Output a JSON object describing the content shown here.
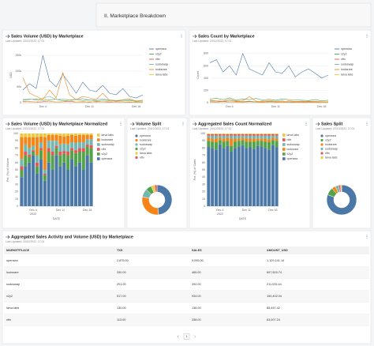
{
  "header": {
    "title": "II. Marketplace Breakdown"
  },
  "chart_data": [
    {
      "type": "line",
      "title": "Sales Volume (USD) by Marketplace",
      "subtitle": "Last Updated: 20/12/2022, 17:01",
      "ylabel": "USD",
      "categories": [
        null,
        null,
        null,
        "Dec 4",
        null,
        null,
        null,
        null,
        null,
        null,
        "Dec 11",
        null,
        null,
        null,
        null,
        null,
        null,
        "Dec 18",
        null
      ],
      "ylim": [
        0,
        175000
      ],
      "yticks": [
        0,
        {
          "value": 50000,
          "label": "50k"
        },
        {
          "value": 100000,
          "label": "100k"
        },
        {
          "value": 150000,
          "label": "150k"
        }
      ],
      "grid": true,
      "series": [
        {
          "name": "opensea",
          "color": "#4c78a8",
          "values": [
            40000,
            60000,
            45000,
            150000,
            70000,
            50000,
            90000,
            60000,
            30000,
            65000,
            40000,
            35000,
            55000,
            30000,
            25000,
            45000,
            20000,
            15000,
            25000
          ]
        },
        {
          "name": "x2y2",
          "color": "#54a24b",
          "values": [
            8000,
            10000,
            12000,
            7000,
            9000,
            11000,
            6000,
            8000,
            10000,
            7000,
            9000,
            6000,
            8000,
            7000,
            6000,
            5000,
            7000,
            4000,
            5000
          ]
        },
        {
          "name": "nftx",
          "color": "#e45756",
          "values": [
            3000,
            4000,
            2000,
            3000,
            5000,
            2000,
            3000,
            4000,
            2000,
            3000,
            2000,
            4000,
            3000,
            2000,
            3000,
            2000,
            1000,
            2000,
            1000
          ]
        },
        {
          "name": "sudoswap",
          "color": "#72b7b2",
          "values": [
            10000,
            12000,
            8000,
            15000,
            20000,
            10000,
            12000,
            9000,
            11000,
            13000,
            8000,
            10000,
            12000,
            9000,
            7000,
            8000,
            10000,
            6000,
            5000
          ]
        },
        {
          "name": "looksrare",
          "color": "#f58518",
          "values": [
            80000,
            30000,
            20000,
            10000,
            40000,
            15000,
            95000,
            25000,
            10000,
            20000,
            15000,
            10000,
            30000,
            8000,
            5000,
            10000,
            12000,
            5000,
            8000
          ]
        },
        {
          "name": "larva labs",
          "color": "#eeca3b",
          "values": [
            5000,
            3000,
            2000,
            15000,
            4000,
            2000,
            3000,
            8000,
            2000,
            1000,
            4000,
            2000,
            3000,
            5000,
            1000,
            2000,
            3000,
            1000,
            2000
          ]
        }
      ]
    },
    {
      "type": "line",
      "title": "Sales Count by Marketplace",
      "subtitle": "Last Updated: 20/12/2022, 17:01",
      "ylabel": "Count",
      "categories": [
        null,
        null,
        null,
        "Dec 4",
        null,
        null,
        null,
        null,
        null,
        null,
        "Dec 11",
        null,
        null,
        null,
        null,
        null,
        null,
        "Dec 18",
        null
      ],
      "ylim": [
        0,
        900
      ],
      "yticks": [
        0,
        200,
        400,
        600,
        800
      ],
      "grid": true,
      "series": [
        {
          "name": "opensea",
          "color": "#4c78a8",
          "values": [
            650,
            700,
            500,
            600,
            450,
            800,
            550,
            500,
            450,
            650,
            500,
            480,
            600,
            420,
            500,
            550,
            480,
            400,
            450
          ]
        },
        {
          "name": "x2y2",
          "color": "#54a24b",
          "values": [
            60,
            70,
            50,
            80,
            40,
            60,
            50,
            70,
            45,
            55,
            40,
            60,
            50,
            45,
            40,
            35,
            50,
            30,
            40
          ]
        },
        {
          "name": "nftx",
          "color": "#e45756",
          "values": [
            15,
            10,
            20,
            12,
            15,
            10,
            18,
            12,
            10,
            15,
            12,
            10,
            8,
            12,
            10,
            8,
            12,
            6,
            8
          ]
        },
        {
          "name": "sudoswap",
          "color": "#72b7b2",
          "values": [
            30,
            25,
            20,
            35,
            30,
            20,
            25,
            15,
            30,
            20,
            25,
            30,
            15,
            20,
            25,
            15,
            20,
            10,
            15
          ]
        },
        {
          "name": "looksrare",
          "color": "#f58518",
          "values": [
            40,
            30,
            25,
            60,
            20,
            30,
            100,
            25,
            20,
            35,
            20,
            15,
            30,
            20,
            15,
            25,
            20,
            15,
            10
          ]
        },
        {
          "name": "larva labs",
          "color": "#eeca3b",
          "values": [
            8,
            5,
            3,
            12,
            4,
            5,
            3,
            6,
            2,
            4,
            3,
            5,
            2,
            4,
            3,
            2,
            4,
            1,
            3
          ]
        }
      ]
    },
    {
      "type": "stacked_bar",
      "title": "Sales Volume (USD) by Marketplace Normalized",
      "subtitle": "Last Updated: 20/12/2022, 17:01",
      "ylabel": "Pct. (%) of Volume",
      "xlabel": "DATE",
      "x_sublabel": "2022",
      "categories": [
        null,
        null,
        null,
        "Dec 4",
        null,
        null,
        null,
        null,
        null,
        null,
        "Dec 11",
        null,
        null,
        null,
        null,
        null,
        null,
        "Dec 18",
        null
      ],
      "ylim": [
        0,
        100
      ],
      "yticks": [
        0,
        10,
        20,
        30,
        40,
        50,
        60,
        70,
        80,
        90,
        100
      ],
      "series": [
        {
          "name": "larva labs",
          "color": "#eeca3b",
          "values": [
            5,
            5,
            5,
            5,
            5,
            4,
            5,
            2,
            2,
            2,
            3,
            4,
            3,
            2,
            3,
            2,
            2,
            2,
            2
          ]
        },
        {
          "name": "looksrare",
          "color": "#f58518",
          "values": [
            30,
            10,
            15,
            12,
            25,
            8,
            45,
            8,
            8,
            8,
            12,
            10,
            12,
            10,
            10,
            10,
            10,
            6,
            6
          ]
        },
        {
          "name": "sudoswap",
          "color": "#72b7b2",
          "values": [
            10,
            10,
            9,
            6,
            10,
            8,
            5,
            10,
            15,
            7,
            10,
            10,
            10,
            8,
            10,
            8,
            8,
            7,
            8
          ]
        },
        {
          "name": "nftx",
          "color": "#e45756",
          "values": [
            5,
            5,
            3,
            2,
            5,
            3,
            2,
            5,
            5,
            3,
            5,
            4,
            5,
            3,
            4,
            5,
            5,
            3,
            4
          ]
        },
        {
          "name": "x2y2",
          "color": "#54a24b",
          "values": [
            10,
            15,
            8,
            5,
            10,
            12,
            8,
            15,
            20,
            10,
            15,
            12,
            20,
            12,
            18,
            15,
            25,
            12,
            20
          ]
        },
        {
          "name": "opensea",
          "color": "#4c78a8",
          "values": [
            40,
            55,
            60,
            70,
            45,
            65,
            35,
            60,
            50,
            70,
            55,
            60,
            50,
            65,
            55,
            60,
            50,
            70,
            60
          ]
        }
      ]
    },
    {
      "type": "pie",
      "title": "Volume Split",
      "subtitle": "Last Updated: 20/12/2022, 17:01",
      "categories": [
        "opensea",
        "looksrare",
        "sudoswap",
        "x2y2",
        "larva labs",
        "nftx"
      ],
      "values": [
        48.3,
        29.9,
        9.0,
        6.4,
        3.7,
        2.7
      ],
      "colors": [
        "#4c78a8",
        "#f58518",
        "#72b7b2",
        "#54a24b",
        "#eeca3b",
        "#e45756"
      ]
    },
    {
      "type": "stacked_bar",
      "title": "Aggregated Sales Count Normalized",
      "subtitle": "Last Updated: 20/12/2022, 17:01",
      "ylabel": "Pct. (%) of Sales",
      "xlabel": "DATE",
      "x_sublabel": "2022",
      "categories": [
        null,
        null,
        null,
        "Dec 4",
        null,
        null,
        null,
        null,
        null,
        null,
        "Dec 11",
        null,
        null,
        null,
        null,
        null,
        null,
        "Dec 18",
        null
      ],
      "ylim": [
        0,
        100
      ],
      "yticks": [
        0,
        10,
        20,
        30,
        40,
        50,
        60,
        70,
        80,
        90,
        100
      ],
      "series": [
        {
          "name": "larva labs",
          "color": "#eeca3b",
          "values": [
            1,
            1,
            1,
            1,
            1,
            1,
            1,
            1,
            1,
            1,
            1,
            1,
            1,
            1,
            1,
            1,
            1,
            1,
            1
          ]
        },
        {
          "name": "nftx",
          "color": "#e45756",
          "values": [
            2,
            2,
            2,
            2,
            2,
            2,
            2,
            2,
            2,
            2,
            2,
            2,
            2,
            2,
            2,
            2,
            2,
            2,
            2
          ]
        },
        {
          "name": "sudoswap",
          "color": "#72b7b2",
          "values": [
            3,
            4,
            4,
            3,
            4,
            3,
            4,
            4,
            4,
            3,
            4,
            4,
            4,
            4,
            4,
            4,
            5,
            3,
            4
          ]
        },
        {
          "name": "looksrare",
          "color": "#f58518",
          "values": [
            4,
            4,
            5,
            3,
            4,
            4,
            10,
            4,
            3,
            3,
            4,
            4,
            4,
            3,
            3,
            4,
            4,
            3,
            3
          ]
        },
        {
          "name": "x2y2",
          "color": "#54a24b",
          "values": [
            8,
            9,
            10,
            6,
            9,
            7,
            8,
            9,
            8,
            7,
            9,
            8,
            10,
            7,
            8,
            9,
            10,
            7,
            9
          ]
        },
        {
          "name": "opensea",
          "color": "#4c78a8",
          "values": [
            82,
            80,
            78,
            85,
            80,
            83,
            75,
            80,
            82,
            84,
            80,
            81,
            79,
            83,
            82,
            80,
            78,
            84,
            81
          ]
        }
      ]
    },
    {
      "type": "pie",
      "title": "Sales Split",
      "subtitle": "Last Updated: 20/12/2022, 17:01",
      "categories": [
        "opensea",
        "x2y2",
        "looksrare",
        "sudoswap",
        "nftx",
        "larva labs"
      ],
      "values": [
        80.6,
        8.3,
        4.1,
        3.5,
        2.3,
        1.2
      ],
      "colors": [
        "#4c78a8",
        "#54a24b",
        "#f58518",
        "#72b7b2",
        "#e45756",
        "#eeca3b"
      ]
    }
  ],
  "table": {
    "title": "Aggregated Sales Activity and Volume (USD) by Marketplace",
    "subtitle": "Last Updated: 20/12/2022, 17:01",
    "columns": [
      "MARKETPLACE",
      "TXS",
      "SALES",
      "AMOUNT_USD"
    ],
    "rows": [
      [
        "opensea",
        "2,875.00",
        "9,095.00",
        "1,129,141.14"
      ],
      [
        "looksrare",
        "330.00",
        "465.00",
        "697,503.74"
      ],
      [
        "sudoswap",
        "201.00",
        "392.00",
        "211,033.44"
      ],
      [
        "x2y2",
        "517.00",
        "934.00",
        "150,402.04"
      ],
      [
        "larva labs",
        "130.00",
        "138.00",
        "85,497.42"
      ],
      [
        "nftx",
        "113.00",
        "258.00",
        "63,007.24"
      ]
    ],
    "page": "1"
  }
}
